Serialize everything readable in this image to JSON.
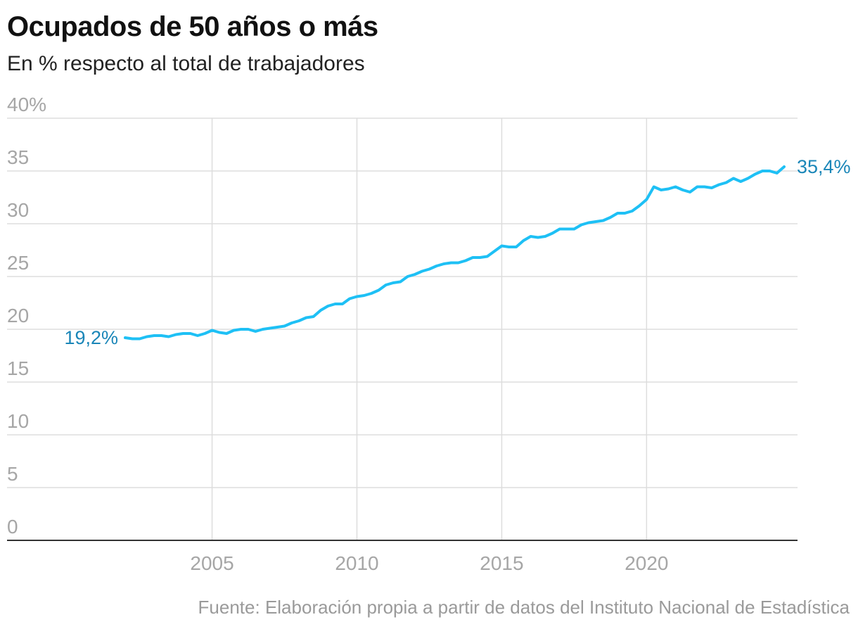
{
  "header": {
    "title": "Ocupados de 50 años o más",
    "subtitle": "En % respecto al total de trabajadores"
  },
  "footer": {
    "source": "Fuente: Elaboración propia a partir de datos del Instituto Nacional de Estadística"
  },
  "colors": {
    "line": "#1ec0f5",
    "label": "#1a86b8",
    "grid": "#dddddd",
    "axis": "#333333",
    "tick": "#a6a6a6"
  },
  "chart_data": {
    "type": "line",
    "title": "Ocupados de 50 años o más",
    "subtitle": "En % respecto al total de trabajadores",
    "xlabel": "",
    "ylabel": "",
    "xlim": [
      2002.0,
      2024.75
    ],
    "ylim": [
      0,
      40
    ],
    "grid": true,
    "legend": "none",
    "y_ticks": [
      0,
      5,
      10,
      15,
      20,
      25,
      30,
      35,
      40
    ],
    "y_tick_labels": [
      "0",
      "5",
      "10",
      "15",
      "20",
      "25",
      "30",
      "35",
      "40%"
    ],
    "x_ticks": [
      2005,
      2010,
      2015,
      2020
    ],
    "x_tick_labels": [
      "2005",
      "2010",
      "2015",
      "2020"
    ],
    "series": [
      {
        "x": [
          2002.0,
          2002.25,
          2002.5,
          2002.75,
          2003.0,
          2003.25,
          2003.5,
          2003.75,
          2004.0,
          2004.25,
          2004.5,
          2004.75,
          2005.0,
          2005.25,
          2005.5,
          2005.75,
          2006.0,
          2006.25,
          2006.5,
          2006.75,
          2007.0,
          2007.25,
          2007.5,
          2007.75,
          2008.0,
          2008.25,
          2008.5,
          2008.75,
          2009.0,
          2009.25,
          2009.5,
          2009.75,
          2010.0,
          2010.25,
          2010.5,
          2010.75,
          2011.0,
          2011.25,
          2011.5,
          2011.75,
          2012.0,
          2012.25,
          2012.5,
          2012.75,
          2013.0,
          2013.25,
          2013.5,
          2013.75,
          2014.0,
          2014.25,
          2014.5,
          2014.75,
          2015.0,
          2015.25,
          2015.5,
          2015.75,
          2016.0,
          2016.25,
          2016.5,
          2016.75,
          2017.0,
          2017.25,
          2017.5,
          2017.75,
          2018.0,
          2018.25,
          2018.5,
          2018.75,
          2019.0,
          2019.25,
          2019.5,
          2019.75,
          2020.0,
          2020.25,
          2020.5,
          2020.75,
          2021.0,
          2021.25,
          2021.5,
          2021.75,
          2022.0,
          2022.25,
          2022.5,
          2022.75,
          2023.0,
          2023.25,
          2023.5,
          2023.75,
          2024.0,
          2024.25,
          2024.5,
          2024.75
        ],
        "values": [
          19.2,
          19.1,
          19.1,
          19.3,
          19.4,
          19.4,
          19.3,
          19.5,
          19.6,
          19.6,
          19.4,
          19.6,
          19.9,
          19.7,
          19.6,
          19.9,
          20.0,
          20.0,
          19.8,
          20.0,
          20.1,
          20.2,
          20.3,
          20.6,
          20.8,
          21.1,
          21.2,
          21.8,
          22.2,
          22.4,
          22.4,
          22.9,
          23.1,
          23.2,
          23.4,
          23.7,
          24.2,
          24.4,
          24.5,
          25.0,
          25.2,
          25.5,
          25.7,
          26.0,
          26.2,
          26.3,
          26.3,
          26.5,
          26.8,
          26.8,
          26.9,
          27.4,
          27.9,
          27.8,
          27.8,
          28.4,
          28.8,
          28.7,
          28.8,
          29.1,
          29.5,
          29.5,
          29.5,
          29.9,
          30.1,
          30.2,
          30.3,
          30.6,
          31.0,
          31.0,
          31.2,
          31.7,
          32.3,
          33.5,
          33.2,
          33.3,
          33.5,
          33.2,
          33.0,
          33.5,
          33.5,
          33.4,
          33.7,
          33.9,
          34.3,
          34.0,
          34.3,
          34.7,
          35.0,
          35.0,
          34.8,
          35.4
        ]
      }
    ],
    "annotations": [
      {
        "label": "19,2%",
        "point": "first"
      },
      {
        "label": "35,4%",
        "point": "last"
      }
    ]
  }
}
